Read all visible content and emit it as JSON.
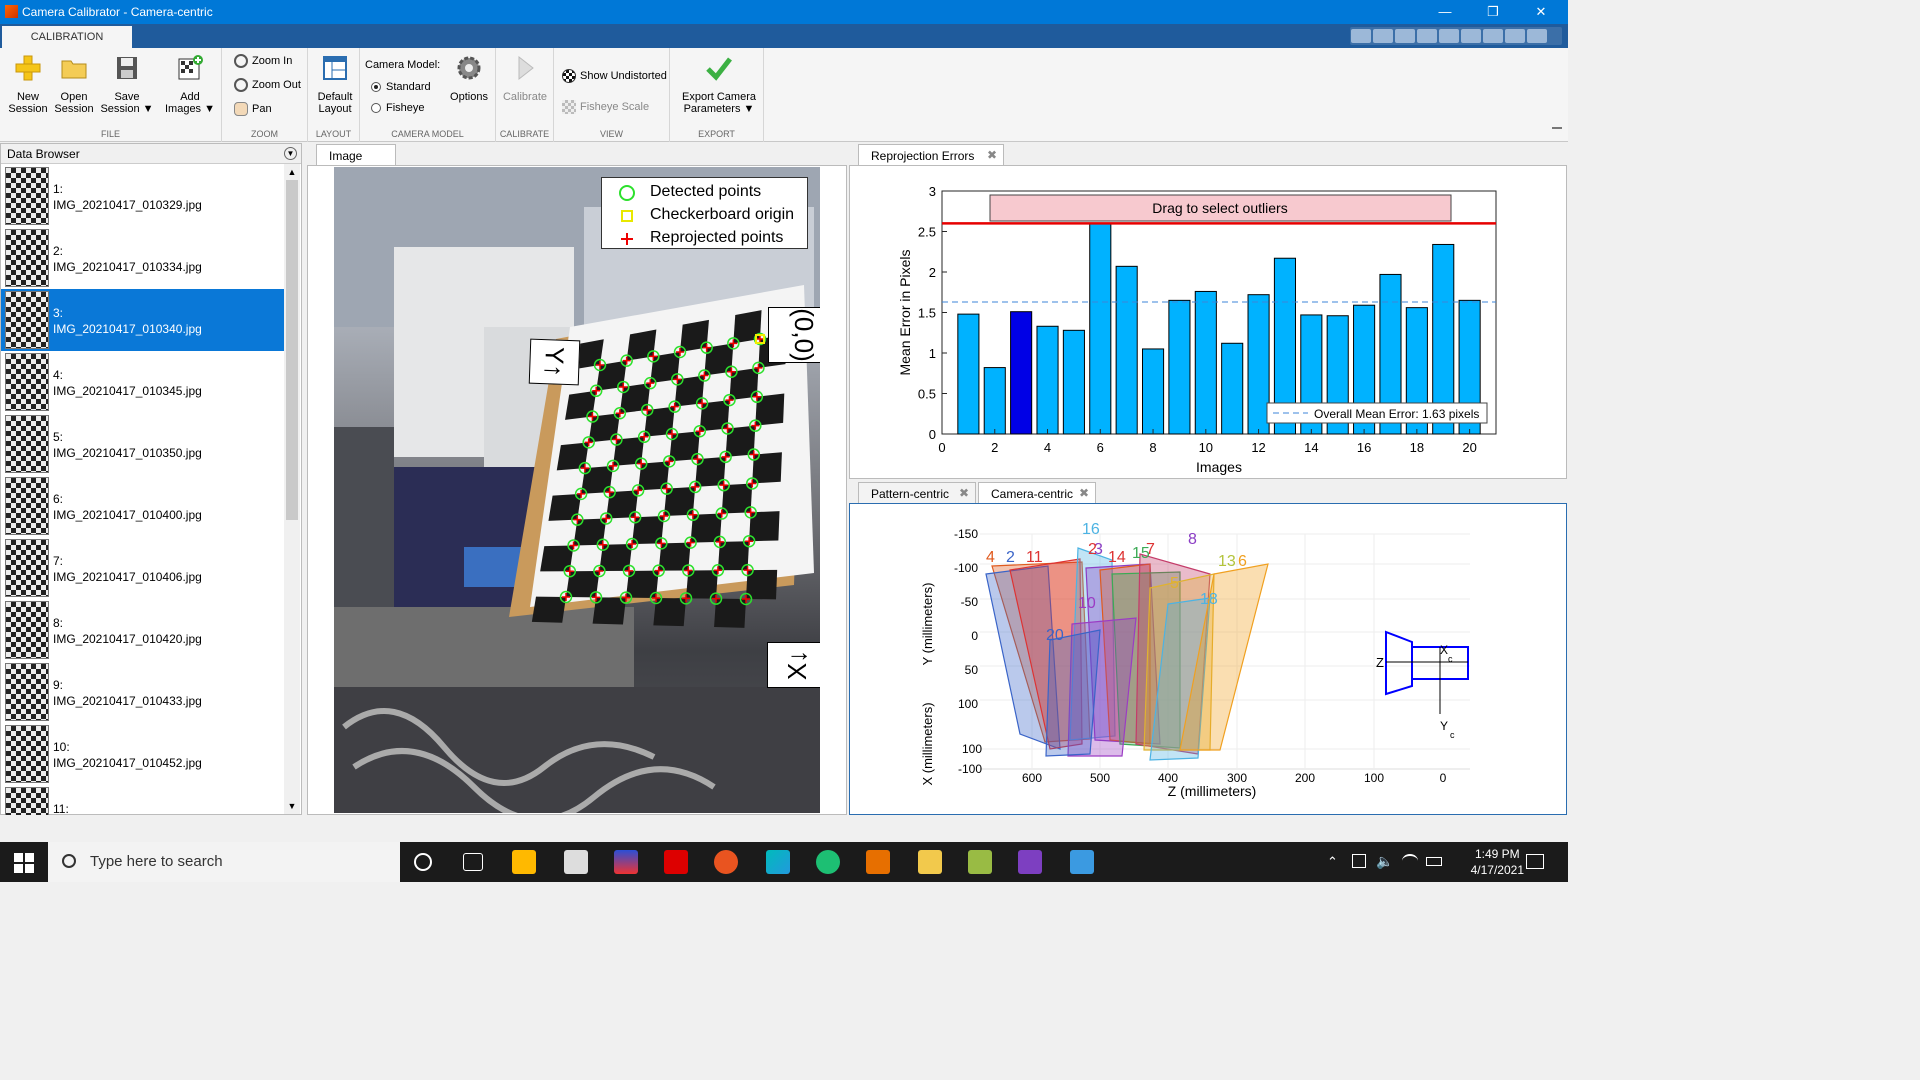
{
  "window": {
    "title": "Camera Calibrator - Camera-centric"
  },
  "ribbon": {
    "tab": "CALIBRATION",
    "groups": {
      "file": "FILE",
      "zoom": "ZOOM",
      "layout": "LAYOUT",
      "camera_model": "CAMERA MODEL",
      "calibrate": "CALIBRATE",
      "view": "VIEW",
      "export": "EXPORT"
    },
    "new_session": [
      "New",
      "Session"
    ],
    "open_session": [
      "Open",
      "Session"
    ],
    "save_session": [
      "Save",
      "Session ▼"
    ],
    "add_images": [
      "Add",
      "Images ▼"
    ],
    "zoom_in": "Zoom In",
    "zoom_out": "Zoom Out",
    "pan": "Pan",
    "default_layout": [
      "Default",
      "Layout"
    ],
    "camera_model_label": "Camera Model:",
    "standard": "Standard",
    "fisheye": "Fisheye",
    "options": "Options",
    "calibrate": "Calibrate",
    "show_undistorted": "Show Undistorted",
    "fisheye_scale": "Fisheye Scale",
    "export": [
      "Export Camera",
      "Parameters ▼"
    ]
  },
  "browser": {
    "title": "Data Browser",
    "selected_index": 2,
    "items": [
      {
        "num": "1:",
        "file": "IMG_20210417_010329.jpg"
      },
      {
        "num": "2:",
        "file": "IMG_20210417_010334.jpg"
      },
      {
        "num": "3:",
        "file": "IMG_20210417_010340.jpg"
      },
      {
        "num": "4:",
        "file": "IMG_20210417_010345.jpg"
      },
      {
        "num": "5:",
        "file": "IMG_20210417_010350.jpg"
      },
      {
        "num": "6:",
        "file": "IMG_20210417_010400.jpg"
      },
      {
        "num": "7:",
        "file": "IMG_20210417_010406.jpg"
      },
      {
        "num": "8:",
        "file": "IMG_20210417_010420.jpg"
      },
      {
        "num": "9:",
        "file": "IMG_20210417_010433.jpg"
      },
      {
        "num": "10:",
        "file": "IMG_20210417_010452.jpg"
      },
      {
        "num": "11:",
        "file": ""
      }
    ]
  },
  "image_panel": {
    "tab": "Image",
    "legend": [
      "Detected points",
      "Checkerboard origin",
      "Reprojected points"
    ],
    "axis_y_label": "Y↑",
    "origin_label": "(0,0)",
    "axis_x_label": "X↓"
  },
  "reprojection": {
    "tab": "Reprojection Errors",
    "drag_label": "Drag to select outliers",
    "overall_label": "Overall Mean Error: 1.63 pixels"
  },
  "chart_data": {
    "type": "bar",
    "xlabel": "Images",
    "ylabel": "Mean Error in Pixels",
    "ylim": [
      0,
      3
    ],
    "xlim": [
      0,
      21
    ],
    "x_ticks": [
      "0",
      "2",
      "4",
      "6",
      "8",
      "10",
      "12",
      "14",
      "16",
      "18",
      "20"
    ],
    "y_ticks": [
      "0",
      "0.5",
      "1",
      "1.5",
      "2",
      "2.5",
      "3"
    ],
    "categories": [
      1,
      2,
      3,
      4,
      5,
      6,
      7,
      8,
      9,
      10,
      11,
      12,
      13,
      14,
      15,
      16,
      17,
      18,
      19,
      20
    ],
    "values": [
      1.48,
      0.82,
      1.51,
      1.33,
      1.28,
      2.6,
      2.07,
      1.05,
      1.65,
      1.76,
      1.12,
      1.72,
      2.17,
      1.47,
      1.46,
      1.59,
      1.97,
      1.56,
      2.34,
      1.65
    ],
    "selected": 3,
    "mean": 1.63,
    "threshold": 2.6,
    "bar_color": "#00b2ff",
    "selected_color": "#0000e6",
    "threshold_color": "#e60000"
  },
  "views": {
    "tabs": [
      "Pattern-centric",
      "Camera-centric"
    ],
    "active": 1,
    "y_label": "Y (millimeters)",
    "x_label": "X (millimeters)",
    "z_label": "Z (millimeters)",
    "z_ticks": [
      "600",
      "500",
      "400",
      "300",
      "200",
      "100",
      "0"
    ],
    "y_ticks": [
      "-150",
      "-100",
      "-50",
      "0",
      "50",
      "100"
    ],
    "x_ticks": [
      "100",
      "-100"
    ],
    "board_labels": [
      "4",
      "2",
      "11",
      "16",
      "3",
      "2",
      "14",
      "15",
      "7",
      "8",
      "13",
      "6",
      "5",
      "18",
      "10",
      "20"
    ],
    "cam_z": "Z",
    "cam_xc": "X",
    "cam_xc_sub": "c",
    "cam_yc": "Y",
    "cam_yc_sub": "c"
  },
  "taskbar": {
    "search_placeholder": "Type here to search",
    "time": "1:49 PM",
    "date": "4/17/2021"
  }
}
